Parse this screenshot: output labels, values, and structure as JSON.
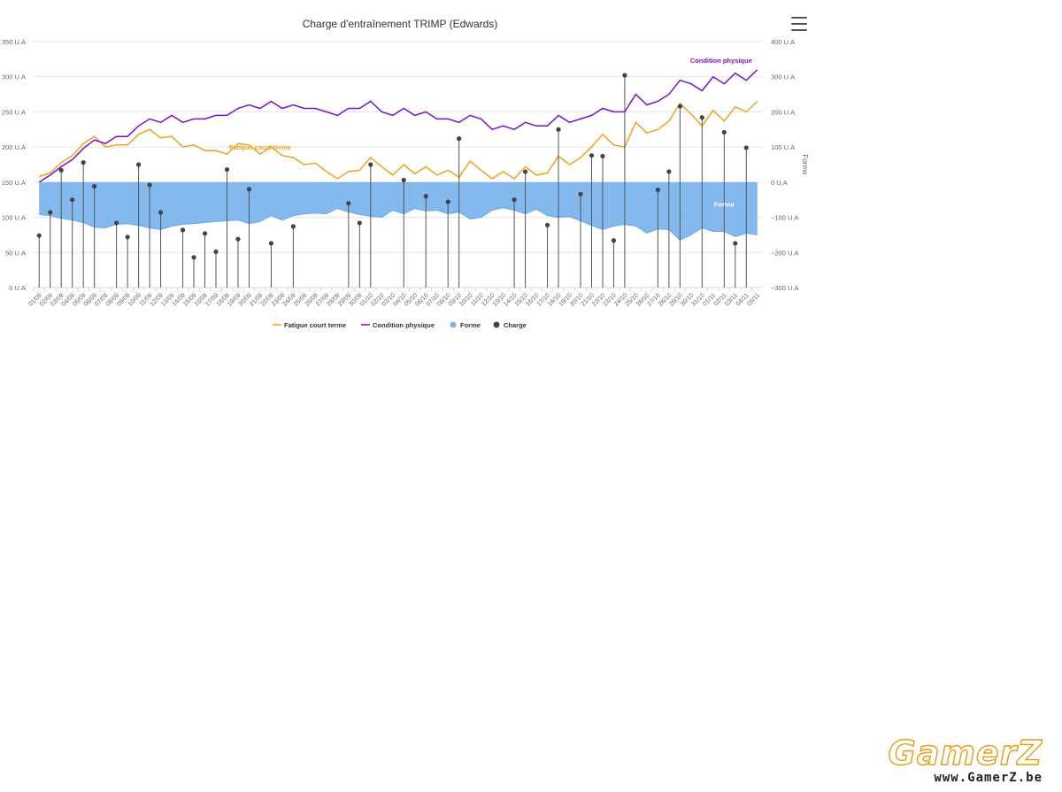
{
  "chart_data": {
    "type": "line",
    "title": "Charge d'entraînement TRIMP (Edwards)",
    "categories": [
      "01/09",
      "02/09",
      "03/09",
      "04/09",
      "05/09",
      "06/09",
      "07/09",
      "08/09",
      "09/09",
      "10/09",
      "11/09",
      "12/09",
      "13/09",
      "14/09",
      "15/09",
      "16/09",
      "17/09",
      "18/09",
      "19/09",
      "20/09",
      "21/09",
      "22/09",
      "23/09",
      "24/09",
      "25/09",
      "26/09",
      "27/09",
      "28/09",
      "29/09",
      "30/09",
      "01/10",
      "02/10",
      "03/10",
      "04/10",
      "05/10",
      "06/10",
      "07/10",
      "08/10",
      "09/10",
      "10/10",
      "11/10",
      "12/10",
      "13/10",
      "14/10",
      "15/10",
      "16/10",
      "17/10",
      "18/10",
      "19/10",
      "20/10",
      "21/10",
      "22/10",
      "23/10",
      "24/10",
      "25/10",
      "26/10",
      "27/10",
      "28/10",
      "29/10",
      "30/10",
      "31/10",
      "01/11",
      "02/11",
      "03/11",
      "04/11",
      "05/11"
    ],
    "left_axis": {
      "ticks": [
        "0 U.A",
        "50 U.A",
        "100 U.A",
        "150 U.A",
        "200 U.A",
        "250 U.A",
        "300 U.A",
        "350 U.A"
      ],
      "ylim": [
        0,
        350
      ]
    },
    "right_axis": {
      "label": "Forme",
      "ticks": [
        "−300 U.A",
        "−200 U.A",
        "−100 U.A",
        "0 U.A",
        "100 U.A",
        "200 U.A",
        "300 U.A",
        "400 U.A"
      ],
      "ylim": [
        -300,
        400
      ]
    },
    "grid": true,
    "legend_position": "bottom-center",
    "series": [
      {
        "name": "Fatigue court terme",
        "kind": "line",
        "axis": "left",
        "color": "#f0a21f",
        "values": [
          158,
          163,
          178,
          188,
          205,
          215,
          200,
          203,
          203,
          218,
          225,
          213,
          215,
          200,
          203,
          195,
          195,
          190,
          205,
          203,
          190,
          200,
          188,
          185,
          175,
          177,
          165,
          155,
          165,
          167,
          185,
          172,
          160,
          175,
          162,
          172,
          160,
          167,
          157,
          180,
          167,
          155,
          165,
          155,
          172,
          160,
          163,
          187,
          175,
          185,
          200,
          218,
          203,
          200,
          235,
          220,
          225,
          237,
          262,
          247,
          230,
          252,
          237,
          257,
          250,
          265
        ]
      },
      {
        "name": "Condition physique",
        "kind": "line",
        "axis": "left",
        "color": "#7713c8",
        "values": [
          150,
          160,
          172,
          182,
          198,
          210,
          205,
          215,
          215,
          230,
          240,
          235,
          245,
          235,
          240,
          240,
          245,
          245,
          255,
          260,
          255,
          265,
          255,
          260,
          255,
          255,
          250,
          245,
          255,
          255,
          265,
          250,
          245,
          255,
          245,
          250,
          240,
          240,
          235,
          245,
          240,
          225,
          230,
          225,
          235,
          230,
          230,
          245,
          235,
          240,
          245,
          255,
          250,
          250,
          275,
          260,
          265,
          275,
          295,
          290,
          280,
          300,
          290,
          305,
          295,
          310
        ]
      },
      {
        "name": "Forme",
        "kind": "area",
        "axis": "right",
        "color": "#7cb5ec",
        "values": [
          -92,
          -95,
          -103,
          -108,
          -115,
          -128,
          -130,
          -120,
          -118,
          -123,
          -130,
          -135,
          -125,
          -120,
          -118,
          -115,
          -112,
          -110,
          -108,
          -118,
          -112,
          -95,
          -108,
          -95,
          -90,
          -88,
          -90,
          -75,
          -85,
          -92,
          -97,
          -100,
          -80,
          -90,
          -75,
          -82,
          -80,
          -90,
          -85,
          -105,
          -100,
          -80,
          -73,
          -80,
          -90,
          -77,
          -95,
          -100,
          -98,
          -110,
          -123,
          -135,
          -125,
          -120,
          -125,
          -145,
          -133,
          -135,
          -165,
          -150,
          -130,
          -140,
          -140,
          -155,
          -145,
          -150
        ]
      },
      {
        "name": "Charge",
        "kind": "stem",
        "axis": "left",
        "color": "#434348",
        "values": [
          74,
          107,
          167,
          125,
          178,
          144,
          0,
          92,
          72,
          175,
          146,
          107,
          0,
          82,
          43,
          77,
          51,
          168,
          69,
          140,
          0,
          63,
          0,
          87,
          0,
          0,
          0,
          0,
          120,
          92,
          175,
          0,
          0,
          153,
          0,
          130,
          0,
          122,
          212,
          0,
          0,
          0,
          0,
          125,
          165,
          0,
          89,
          225,
          0,
          133,
          188,
          187,
          67,
          302,
          0,
          0,
          139,
          165,
          258,
          0,
          242,
          0,
          221,
          63,
          199,
          0
        ]
      }
    ],
    "annotations": [
      {
        "text": "Condition physique",
        "series": "Condition physique",
        "color": "#7713c8"
      },
      {
        "text": "Fatigue court terme",
        "series": "Fatigue court terme",
        "color": "#f0a21f"
      },
      {
        "text": "Forme",
        "series": "Forme",
        "color": "#ffffff"
      }
    ]
  },
  "watermark": {
    "logo": "GamerZ",
    "url": "www.GamerZ.be"
  }
}
